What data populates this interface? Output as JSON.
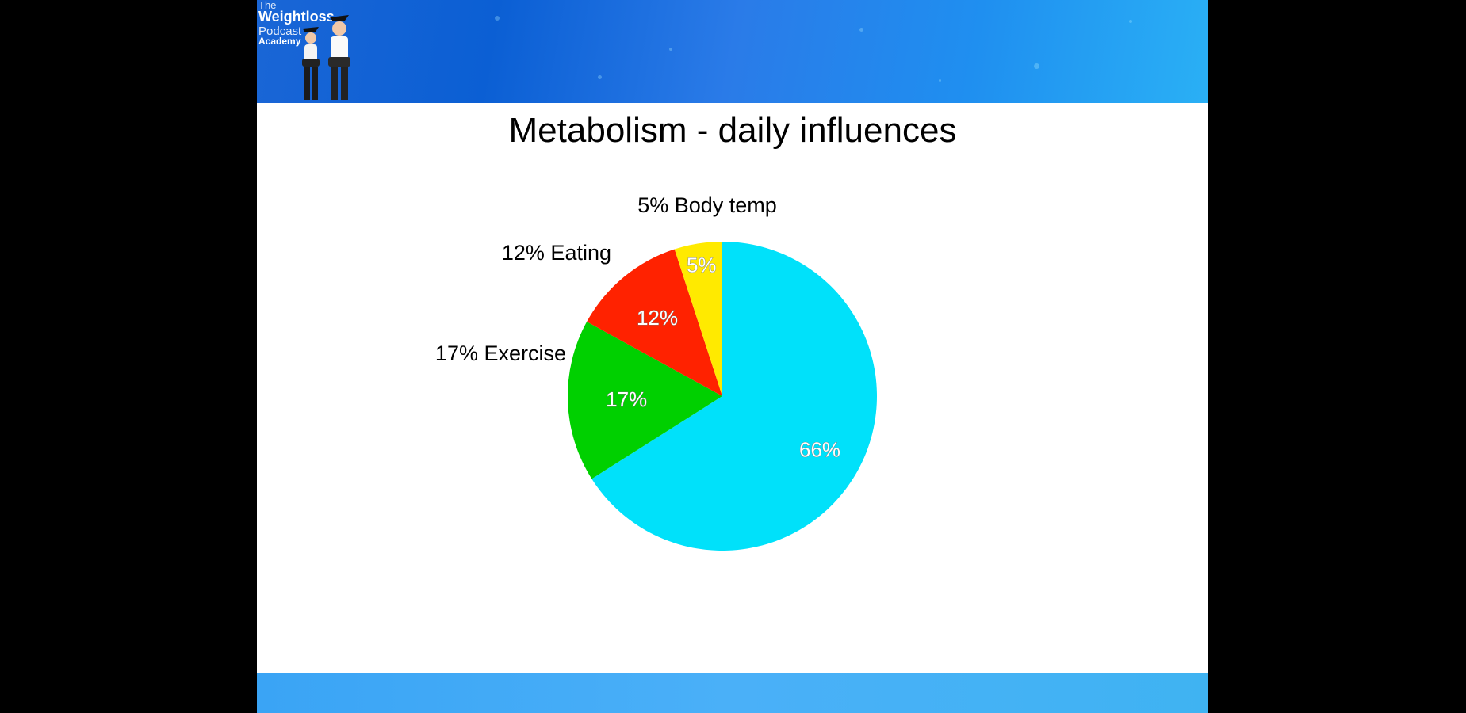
{
  "logo": {
    "line1": "The",
    "line2": "Weightloss",
    "line3": "Podcast",
    "line4": "Academy"
  },
  "chart_data": {
    "type": "pie",
    "title": "Metabolism - daily influences",
    "slices": [
      {
        "inner_label": "66%",
        "value": 66,
        "color": "#00e1fa"
      },
      {
        "label": "17% Exercise",
        "inner_label": "17%",
        "value": 17,
        "color": "#00d000"
      },
      {
        "label": "12% Eating",
        "inner_label": "12%",
        "value": 12,
        "color": "#ff2200"
      },
      {
        "label": "5% Body temp",
        "inner_label": "5%",
        "value": 5,
        "color": "#ffea00"
      }
    ],
    "start_angle_deg": 0,
    "direction": "clockwise"
  }
}
